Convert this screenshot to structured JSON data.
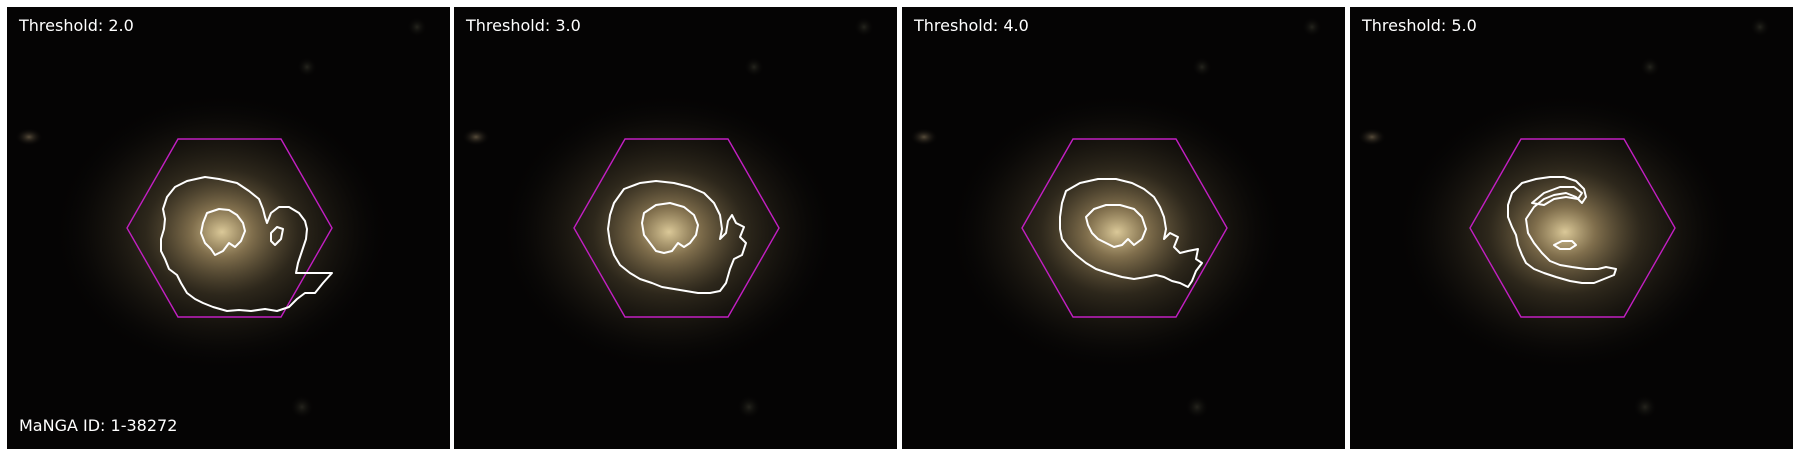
{
  "panels": [
    {
      "threshold_label": "Threshold: 2.0"
    },
    {
      "threshold_label": "Threshold: 3.0"
    },
    {
      "threshold_label": "Threshold: 4.0"
    },
    {
      "threshold_label": "Threshold: 5.0"
    }
  ],
  "manga_id_label": "MaNGA ID: 1-38272",
  "colors": {
    "hexagon": "#c21fc2",
    "contour": "#ffffff",
    "label_text": "#ffffff",
    "sky_background": "#050404",
    "galaxy_core": "#d8c08a"
  }
}
